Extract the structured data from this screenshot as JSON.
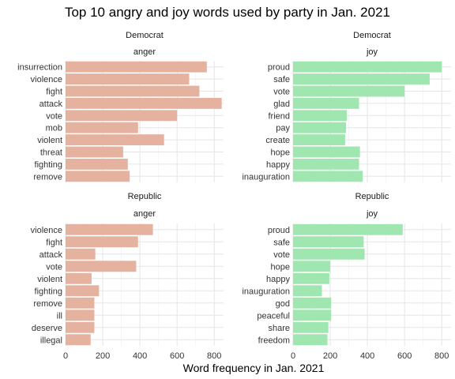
{
  "chart_data": {
    "type": "bar",
    "orientation": "horizontal",
    "title": "Top 10 angry and joy words used by party in Jan. 2021",
    "xlabel": "Word frequency in Jan. 2021",
    "ylabel": "",
    "xlim": [
      0,
      850
    ],
    "xticks": [
      0,
      200,
      400,
      600,
      800
    ],
    "grid": true,
    "colors": {
      "anger": "#e6b2a0",
      "joy": "#a0e6b0"
    },
    "panels": [
      {
        "party": "Democrat",
        "sentiment": "anger",
        "categories": [
          "insurrection",
          "violence",
          "fight",
          "attack",
          "vote",
          "mob",
          "violent",
          "threat",
          "fighting",
          "remove"
        ],
        "values": [
          760,
          665,
          720,
          840,
          600,
          390,
          530,
          310,
          335,
          345
        ]
      },
      {
        "party": "Democrat",
        "sentiment": "joy",
        "categories": [
          "proud",
          "safe",
          "vote",
          "glad",
          "friend",
          "pay",
          "create",
          "hope",
          "happy",
          "inauguration"
        ],
        "values": [
          800,
          735,
          600,
          355,
          290,
          285,
          280,
          360,
          355,
          375
        ]
      },
      {
        "party": "Republic",
        "sentiment": "anger",
        "categories": [
          "violence",
          "fight",
          "attack",
          "vote",
          "violent",
          "fighting",
          "remove",
          "ill",
          "deserve",
          "illegal"
        ],
        "values": [
          470,
          390,
          160,
          380,
          140,
          180,
          155,
          155,
          155,
          135
        ]
      },
      {
        "party": "Republic",
        "sentiment": "joy",
        "categories": [
          "proud",
          "safe",
          "vote",
          "hope",
          "happy",
          "inauguration",
          "god",
          "peaceful",
          "share",
          "freedom"
        ],
        "values": [
          590,
          380,
          385,
          200,
          195,
          155,
          205,
          205,
          190,
          185
        ]
      }
    ]
  }
}
